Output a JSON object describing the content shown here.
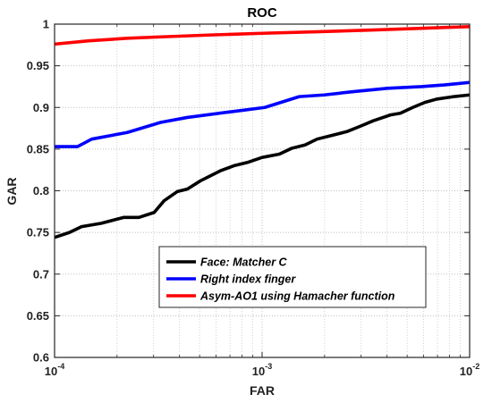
{
  "chart_data": {
    "type": "line",
    "title": "ROC",
    "xlabel": "FAR",
    "ylabel": "GAR",
    "x_scale": "log",
    "xlim": [
      0.0001,
      0.01
    ],
    "ylim": [
      0.6,
      1.0
    ],
    "x_ticks": [
      {
        "base": "10",
        "exp": "-4",
        "value": 0.0001
      },
      {
        "base": "10",
        "exp": "-3",
        "value": 0.001
      },
      {
        "base": "10",
        "exp": "-2",
        "value": 0.01
      }
    ],
    "y_ticks": [
      "0.6",
      "0.65",
      "0.7",
      "0.75",
      "0.8",
      "0.85",
      "0.9",
      "0.95",
      "1"
    ],
    "y_tick_values": [
      0.6,
      0.65,
      0.7,
      0.75,
      0.8,
      0.85,
      0.9,
      0.95,
      1.0
    ],
    "grid": true,
    "legend_position": "bottom-center",
    "series": [
      {
        "name": "Face: Matcher C",
        "color": "#000000",
        "points": [
          [
            0.0001,
            0.744
          ],
          [
            0.000118,
            0.75
          ],
          [
            0.000135,
            0.757
          ],
          [
            0.000168,
            0.761
          ],
          [
            0.000215,
            0.768
          ],
          [
            0.000255,
            0.768
          ],
          [
            0.000302,
            0.774
          ],
          [
            0.000337,
            0.788
          ],
          [
            0.00039,
            0.799
          ],
          [
            0.000436,
            0.802
          ],
          [
            0.000505,
            0.812
          ],
          [
            0.00063,
            0.824
          ],
          [
            0.00073,
            0.83
          ],
          [
            0.00085,
            0.834
          ],
          [
            0.001,
            0.84
          ],
          [
            0.00121,
            0.844
          ],
          [
            0.00139,
            0.851
          ],
          [
            0.00161,
            0.855
          ],
          [
            0.00184,
            0.862
          ],
          [
            0.00213,
            0.866
          ],
          [
            0.00256,
            0.871
          ],
          [
            0.00301,
            0.878
          ],
          [
            0.00343,
            0.884
          ],
          [
            0.00415,
            0.891
          ],
          [
            0.00463,
            0.893
          ],
          [
            0.00532,
            0.9
          ],
          [
            0.00608,
            0.906
          ],
          [
            0.00693,
            0.91
          ],
          [
            0.00838,
            0.913
          ],
          [
            0.01,
            0.915
          ]
        ]
      },
      {
        "name": "Right index finger",
        "color": "#0000ff",
        "points": [
          [
            0.0001,
            0.853
          ],
          [
            0.000129,
            0.853
          ],
          [
            0.000151,
            0.862
          ],
          [
            0.000224,
            0.87
          ],
          [
            0.000324,
            0.882
          ],
          [
            0.000436,
            0.888
          ],
          [
            0.000717,
            0.895
          ],
          [
            0.00103,
            0.9
          ],
          [
            0.00151,
            0.913
          ],
          [
            0.00199,
            0.915
          ],
          [
            0.00275,
            0.919
          ],
          [
            0.00402,
            0.923
          ],
          [
            0.00584,
            0.925
          ],
          [
            0.00754,
            0.927
          ],
          [
            0.01,
            0.93
          ]
        ]
      },
      {
        "name": "Asym-AO1 using Hamacher function",
        "color": "#ff0000",
        "points": [
          [
            0.0001,
            0.976
          ],
          [
            0.000146,
            0.98
          ],
          [
            0.000224,
            0.983
          ],
          [
            0.000349,
            0.985
          ],
          [
            0.000567,
            0.987
          ],
          [
            0.001,
            0.989
          ],
          [
            0.00191,
            0.991
          ],
          [
            0.00343,
            0.993
          ],
          [
            0.00584,
            0.995
          ],
          [
            0.01,
            0.997
          ]
        ]
      }
    ]
  }
}
